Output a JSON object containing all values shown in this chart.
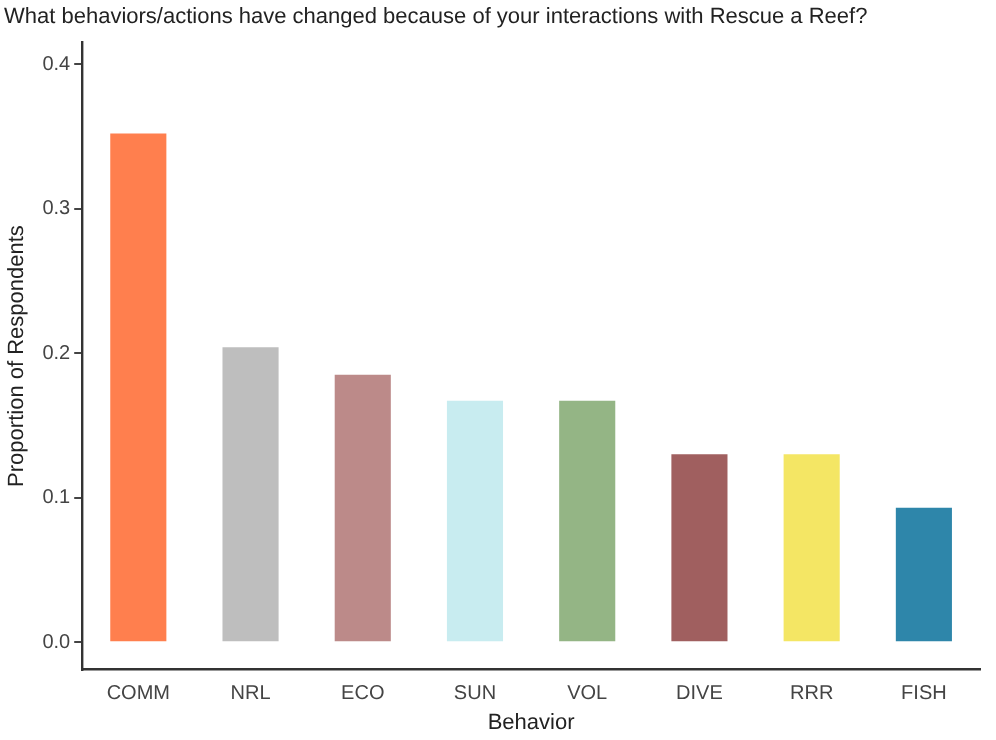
{
  "chart_data": {
    "type": "bar",
    "title": "What behaviors/actions have changed because of your interactions with Rescue a Reef?",
    "xlabel": "Behavior",
    "ylabel": "Proportion of Respondents",
    "categories": [
      "COMM",
      "NRL",
      "ECO",
      "SUN",
      "VOL",
      "DIVE",
      "RRR",
      "FISH"
    ],
    "values": [
      0.352,
      0.204,
      0.185,
      0.167,
      0.167,
      0.13,
      0.13,
      0.093
    ],
    "colors": [
      "#ff7f4e",
      "#bebebe",
      "#bc8a89",
      "#c8ecf0",
      "#94b585",
      "#a05f5f",
      "#f4e664",
      "#2e86aa"
    ],
    "ylim": [
      -0.019,
      0.415
    ],
    "yticks": [
      {
        "value": 0,
        "label": "0.0"
      },
      0.1,
      0.2,
      0.3,
      0.4
    ],
    "grid": false,
    "legend": false
  }
}
